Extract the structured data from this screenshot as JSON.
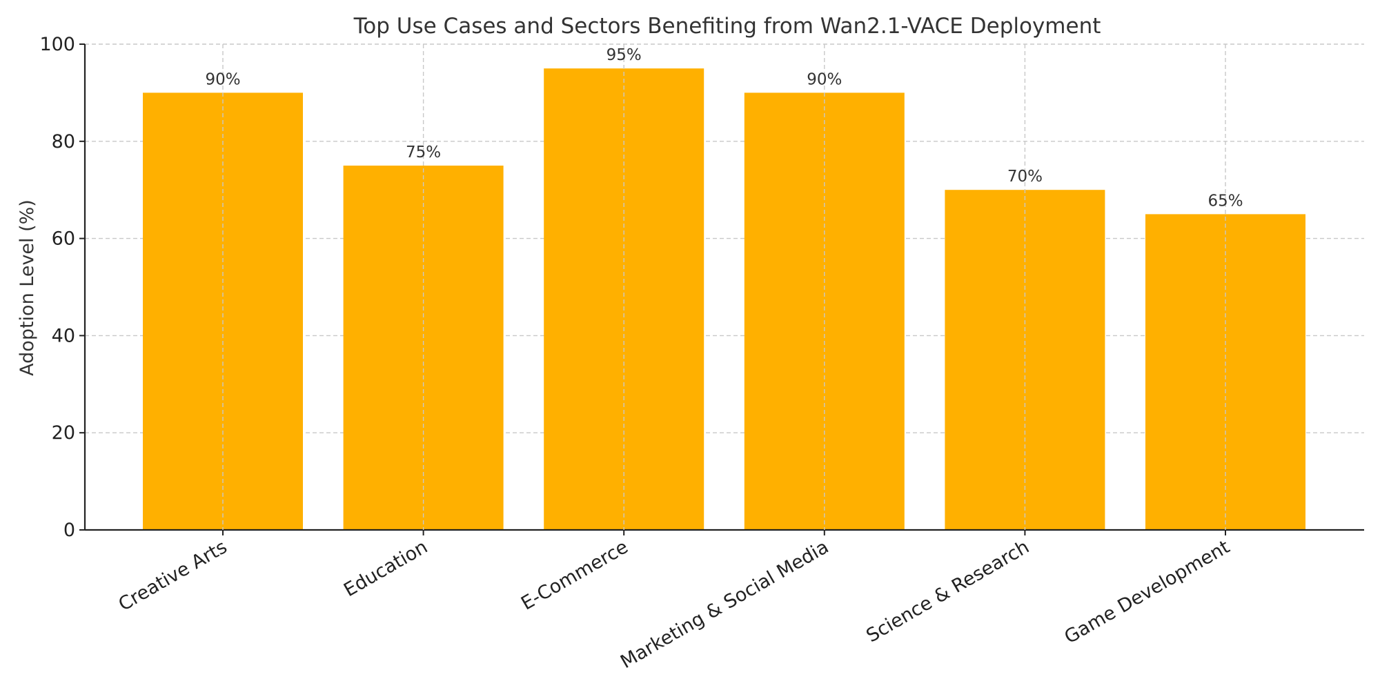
{
  "chart_data": {
    "type": "bar",
    "title": "Top Use Cases and Sectors Benefiting from Wan2.1-VACE Deployment",
    "xlabel": "",
    "ylabel": "Adoption Level (%)",
    "categories": [
      "Creative Arts",
      "Education",
      "E-Commerce",
      "Marketing & Social Media",
      "Science & Research",
      "Game Development"
    ],
    "values": [
      90,
      75,
      95,
      90,
      70,
      65
    ],
    "data_labels": [
      "90%",
      "75%",
      "95%",
      "90%",
      "70%",
      "65%"
    ],
    "ylim": [
      0,
      100
    ],
    "yticks": [
      0,
      20,
      40,
      60,
      80,
      100
    ],
    "ytick_labels": [
      "0",
      "20",
      "40",
      "60",
      "80",
      "100"
    ],
    "grid": true,
    "bar_color": "#FFB000"
  }
}
